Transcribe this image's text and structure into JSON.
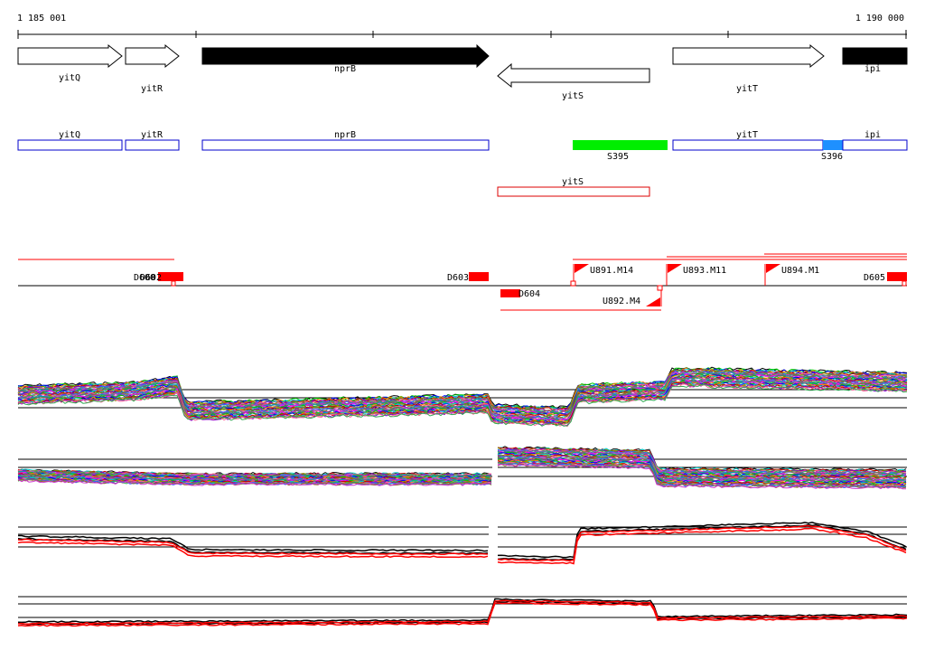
{
  "ruler": {
    "start_label": "1 185 001",
    "end_label": "1 190 000"
  },
  "genes": [
    {
      "name": "yitQ",
      "strand": "+",
      "fill": "#ffffff"
    },
    {
      "name": "yitR",
      "strand": "+",
      "fill": "#ffffff"
    },
    {
      "name": "nprB",
      "strand": "+",
      "fill": "#000000"
    },
    {
      "name": "yitS",
      "strand": "-",
      "fill": "#ffffff"
    },
    {
      "name": "yitT",
      "strand": "+",
      "fill": "#ffffff"
    },
    {
      "name": "ipi",
      "strand": "+",
      "fill": "#000000"
    }
  ],
  "segments": [
    {
      "label": "yitQ",
      "color": "#0000cc"
    },
    {
      "label": "yitR",
      "color": "#0000cc"
    },
    {
      "label": "nprB",
      "color": "#0000cc"
    },
    {
      "label": "S395",
      "color": "#00ee00"
    },
    {
      "label": "yitT",
      "color": "#0000cc"
    },
    {
      "label": "S396",
      "color": "#1e90ff"
    },
    {
      "label": "ipi",
      "color": "#0000cc"
    },
    {
      "label": "yitS",
      "color": "#dd0000"
    }
  ],
  "features": [
    {
      "label": "D600"
    },
    {
      "label": "D602"
    },
    {
      "label": "D603"
    },
    {
      "label": "D604"
    },
    {
      "label": "D605"
    }
  ],
  "upshifts": [
    {
      "label": "U891.M14"
    },
    {
      "label": "U893.M11"
    },
    {
      "label": "U894.M1"
    },
    {
      "label": "U892.M4"
    }
  ],
  "colors": {
    "feature_red": "#ff0000",
    "axis": "#000000",
    "highlight_red": "#ff0000"
  },
  "expression": {
    "panel1_series_count": 40,
    "panel2_series_count": 40,
    "panel3_series": [
      "black",
      "black",
      "red",
      "red"
    ],
    "panel4_series": [
      "black",
      "black",
      "red",
      "red"
    ]
  }
}
